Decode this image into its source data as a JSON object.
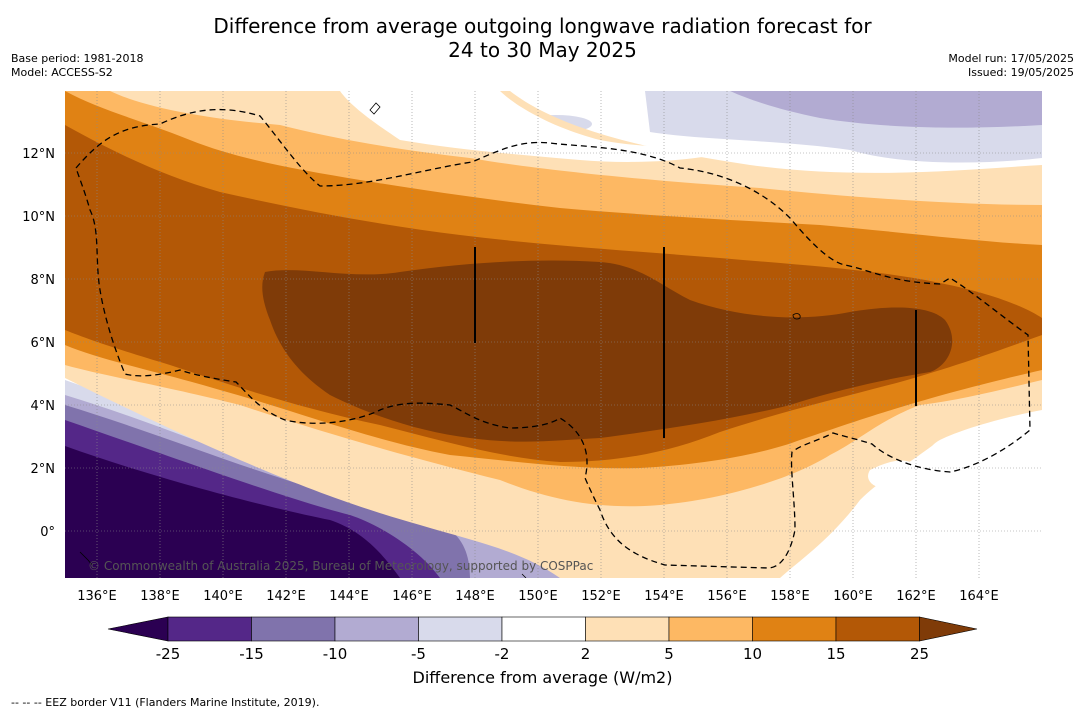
{
  "title_line1": "Difference from average outgoing longwave radiation forecast for",
  "title_line2": "24 to 30 May 2025",
  "meta_left": {
    "base_period": "Base period: 1981-2018",
    "model": "Model: ACCESS-S2"
  },
  "meta_right": {
    "model_run": "Model run: 17/05/2025",
    "issued": "Issued: 19/05/2025"
  },
  "map": {
    "lon_ticks": [
      "136°E",
      "138°E",
      "140°E",
      "142°E",
      "144°E",
      "146°E",
      "148°E",
      "150°E",
      "152°E",
      "154°E",
      "156°E",
      "158°E",
      "160°E",
      "162°E",
      "164°E"
    ],
    "lat_ticks": [
      "12°N",
      "10°N",
      "8°N",
      "6°N",
      "4°N",
      "2°N",
      "0°"
    ],
    "copyright": "© Commonwealth of Australia 2025, Bureau of Meteorology, supported by COSPPac"
  },
  "colorbar": {
    "ticks": [
      "-25",
      "-15",
      "-10",
      "-5",
      "-2",
      "2",
      "5",
      "10",
      "15",
      "25"
    ],
    "colors": [
      "#2b0052",
      "#542788",
      "#8073ac",
      "#b2abd2",
      "#d8daeb",
      "#ffffff",
      "#fee0b6",
      "#fdb863",
      "#e08214",
      "#b35806",
      "#7f3b08"
    ],
    "title": "Difference from average (W/m2)"
  },
  "footer": "-- -- -- EEZ border V11 (Flanders Marine Institute, 2019)."
}
